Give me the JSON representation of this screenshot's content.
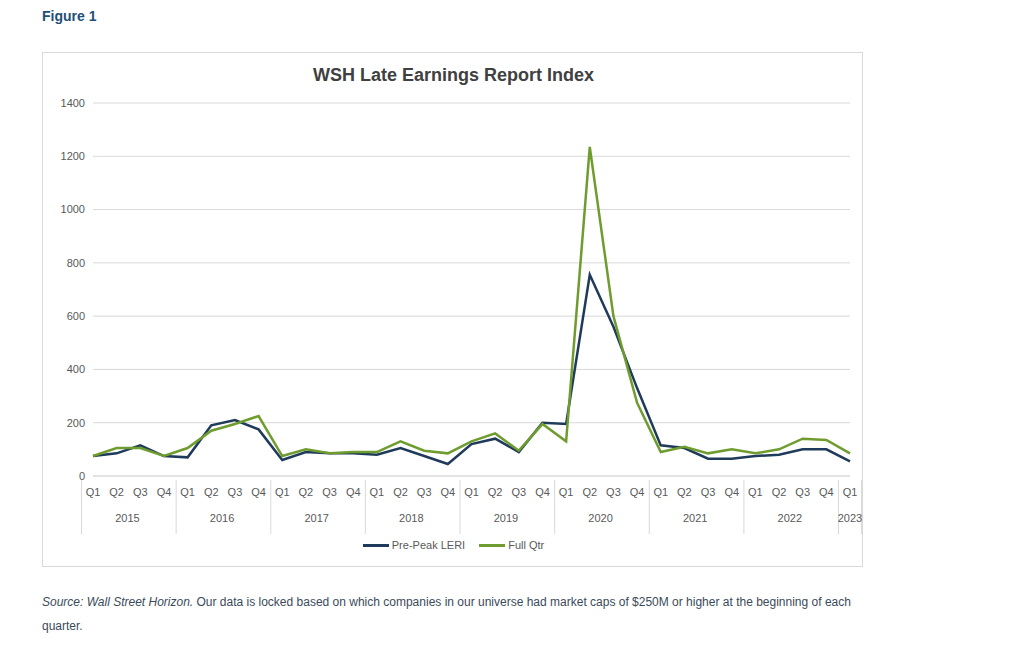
{
  "figure_label": "Figure 1",
  "source": {
    "italic": "Source: Wall Street Horizon.",
    "text": " Our data is locked based on which companies in our universe had market caps of $250M or higher at the beginning of each quarter."
  },
  "chart_data": {
    "type": "line",
    "title": "WSH Late Earnings Report Index",
    "categories": [
      "Q1",
      "Q2",
      "Q3",
      "Q4",
      "Q1",
      "Q2",
      "Q3",
      "Q4",
      "Q1",
      "Q2",
      "Q3",
      "Q4",
      "Q1",
      "Q2",
      "Q3",
      "Q4",
      "Q1",
      "Q2",
      "Q3",
      "Q4",
      "Q1",
      "Q2",
      "Q3",
      "Q4",
      "Q1",
      "Q2",
      "Q3",
      "Q4",
      "Q1",
      "Q2",
      "Q3",
      "Q4",
      "Q1"
    ],
    "category_groups": [
      "2015",
      "2015",
      "2015",
      "2015",
      "2016",
      "2016",
      "2016",
      "2016",
      "2017",
      "2017",
      "2017",
      "2017",
      "2018",
      "2018",
      "2018",
      "2018",
      "2019",
      "2019",
      "2019",
      "2019",
      "2020",
      "2020",
      "2020",
      "2020",
      "2021",
      "2021",
      "2021",
      "2021",
      "2022",
      "2022",
      "2022",
      "2022",
      "2023"
    ],
    "series": [
      {
        "name": "Pre-Peak LERI",
        "color": "#1f3a5a",
        "values": [
          75,
          85,
          115,
          75,
          70,
          190,
          210,
          175,
          60,
          90,
          85,
          85,
          80,
          105,
          75,
          45,
          120,
          140,
          90,
          200,
          195,
          755,
          560,
          330,
          115,
          105,
          65,
          65,
          75,
          80,
          100,
          100,
          55
        ]
      },
      {
        "name": "Full Qtr",
        "color": "#6f9c2f",
        "values": [
          75,
          105,
          105,
          75,
          105,
          170,
          195,
          225,
          75,
          100,
          85,
          90,
          90,
          130,
          95,
          85,
          130,
          160,
          95,
          195,
          130,
          1235,
          600,
          275,
          90,
          110,
          85,
          100,
          85,
          100,
          140,
          135,
          85
        ]
      }
    ],
    "ylim": [
      0,
      1400
    ],
    "yticks": [
      0,
      200,
      400,
      600,
      800,
      1000,
      1200,
      1400
    ],
    "grid": true,
    "legend": "bottom"
  }
}
